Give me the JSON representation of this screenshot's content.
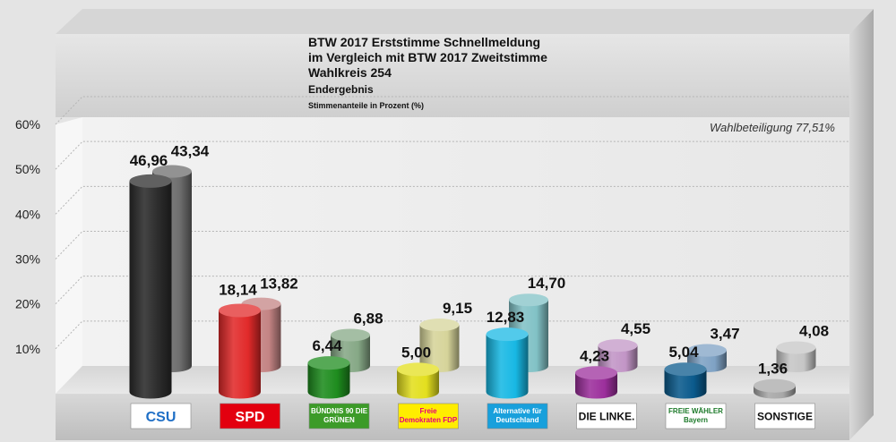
{
  "title": {
    "line1": "BTW 2017 Erststimme Schnellmeldung",
    "line2": "im Vergleich mit BTW 2017 Zweitstimme",
    "line3": "Wahlkreis 254",
    "line4": "Endergebnis",
    "line5": "Stimmenanteile in Prozent (%)"
  },
  "turnout_label": "Wahlbeteiligung 77,51%",
  "colors": {
    "primary": [
      "#2b2b2b",
      "#e12a2a",
      "#1e8c1e",
      "#e3df1e",
      "#18b8e4",
      "#9c2f9c",
      "#0b5a8c",
      "#a8a8a8"
    ],
    "secondary": [
      "#6e6e6e",
      "#c48484",
      "#86a886",
      "#d6d49a",
      "#82c2c6",
      "#c295c6",
      "#7fa2c4",
      "#c6c6c6"
    ]
  },
  "chart_data": {
    "type": "bar",
    "title": "BTW 2017 Erststimme Schnellmeldung im Vergleich mit BTW 2017 Zweitstimme Wahlkreis 254",
    "subtitle": "Endergebnis",
    "ylabel": "Stimmenanteile in Prozent (%)",
    "ylim": [
      0,
      60
    ],
    "yticks": [
      "10%",
      "20%",
      "30%",
      "40%",
      "50%",
      "60%"
    ],
    "grid": true,
    "categories": [
      "CSU",
      "SPD",
      "BÜNDNIS 90 DIE GRÜNEN",
      "Freie Demokraten FDP",
      "Alternative für Deutschland",
      "DIE LINKE.",
      "FREIE WÄHLER Bayern",
      "SONSTIGE"
    ],
    "series": [
      {
        "values": [
          46.96,
          18.14,
          6.44,
          5.0,
          12.83,
          4.23,
          5.04,
          1.36
        ],
        "labels": [
          "46,96",
          "18,14",
          "6,44",
          "5,00",
          "12,83",
          "4,23",
          "5,04",
          "1,36"
        ]
      },
      {
        "values": [
          43.34,
          13.82,
          6.88,
          9.15,
          14.7,
          4.55,
          3.47,
          4.08
        ],
        "labels": [
          "43,34",
          "13,82",
          "6,88",
          "9,15",
          "14,70",
          "4,55",
          "3,47",
          "4,08"
        ]
      }
    ],
    "party_logos": [
      {
        "text": "CSU",
        "bg": "#ffffff",
        "fg": "#1f6fc6"
      },
      {
        "text": "SPD",
        "bg": "#e3000f",
        "fg": "#ffffff"
      },
      {
        "text": "BÜNDNIS 90 DIE GRÜNEN",
        "bg": "#3c9b28",
        "fg": "#ffffff"
      },
      {
        "text": "Freie Demokraten FDP",
        "bg": "#ffed00",
        "fg": "#e5007d"
      },
      {
        "text": "Alternative für Deutschland",
        "bg": "#18a0dc",
        "fg": "#ffffff"
      },
      {
        "text": "DIE LINKE.",
        "bg": "#ffffff",
        "fg": "#111111"
      },
      {
        "text": "FREIE WÄHLER Bayern",
        "bg": "#ffffff",
        "fg": "#1d7a2a"
      },
      {
        "text": "SONSTIGE",
        "bg": "#ffffff",
        "fg": "#111111"
      }
    ]
  }
}
